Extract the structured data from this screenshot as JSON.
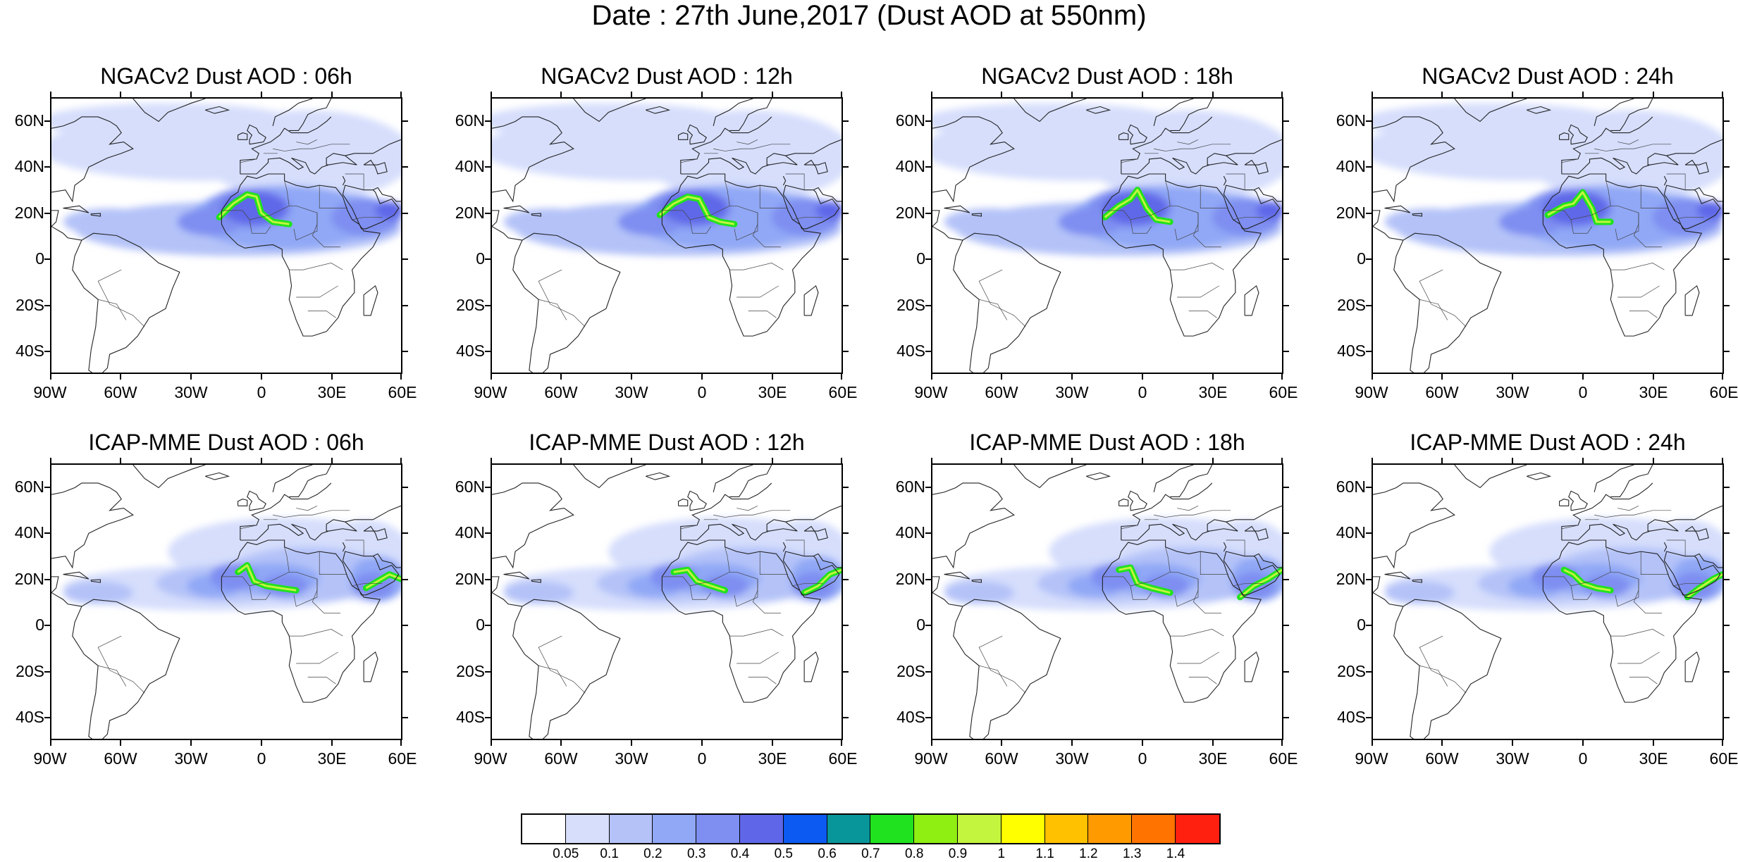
{
  "title": "Date : 27th June,2017 (Dust AOD at 550nm)",
  "lat_labels": [
    "60N",
    "40N",
    "20N",
    "0",
    "20S",
    "40S"
  ],
  "lon_labels": [
    "90W",
    "60W",
    "30W",
    "0",
    "30E",
    "60E"
  ],
  "panels": [
    {
      "title": "NGACv2 Dust AOD : 06h",
      "model": "NGACv2",
      "lead": "06h"
    },
    {
      "title": "NGACv2 Dust AOD : 12h",
      "model": "NGACv2",
      "lead": "12h"
    },
    {
      "title": "NGACv2 Dust AOD : 18h",
      "model": "NGACv2",
      "lead": "18h"
    },
    {
      "title": "NGACv2 Dust AOD : 24h",
      "model": "NGACv2",
      "lead": "24h"
    },
    {
      "title": "ICAP-MME Dust AOD : 06h",
      "model": "ICAP-MME",
      "lead": "06h"
    },
    {
      "title": "ICAP-MME Dust AOD : 12h",
      "model": "ICAP-MME",
      "lead": "12h"
    },
    {
      "title": "ICAP-MME Dust AOD : 18h",
      "model": "ICAP-MME",
      "lead": "18h"
    },
    {
      "title": "ICAP-MME Dust AOD : 24h",
      "model": "ICAP-MME",
      "lead": "24h"
    }
  ],
  "colorbar": {
    "colors": [
      "#ffffff",
      "#d6defc",
      "#b4c2f8",
      "#90a8f6",
      "#7e8ef1",
      "#5f67e8",
      "#0d5af2",
      "#08969a",
      "#21e21f",
      "#8fee12",
      "#c3f43e",
      "#ffff00",
      "#ffc100",
      "#ff9a00",
      "#ff7300",
      "#ff2010"
    ],
    "labels": [
      "0.05",
      "0.1",
      "0.2",
      "0.3",
      "0.4",
      "0.5",
      "0.6",
      "0.7",
      "0.8",
      "0.9",
      "1",
      "1.1",
      "1.2",
      "1.3",
      "1.4"
    ]
  }
}
